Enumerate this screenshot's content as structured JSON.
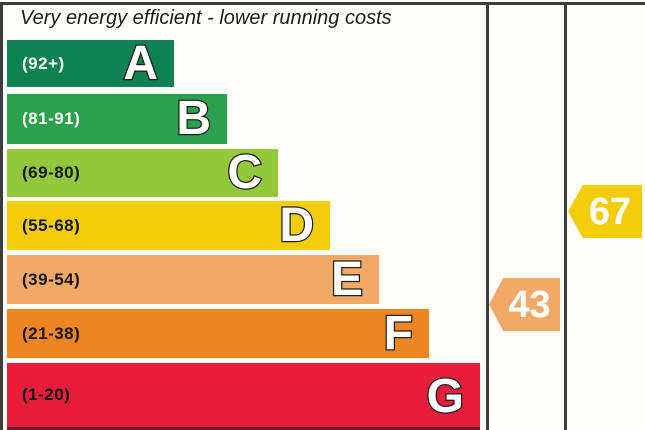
{
  "title": "Very energy efficient - lower running costs",
  "chart_data": {
    "type": "bar",
    "title": "Very energy efficient - lower running costs",
    "legend_position": "none",
    "grid": false,
    "bands": [
      {
        "letter": "A",
        "range": "(92+)",
        "score_range": [
          92,
          100
        ],
        "color": "#0e8250",
        "label_color": "#ffffff"
      },
      {
        "letter": "B",
        "range": "(81-91)",
        "score_range": [
          81,
          91
        ],
        "color": "#2ca04e",
        "label_color": "#ffffff"
      },
      {
        "letter": "C",
        "range": "(69-80)",
        "score_range": [
          69,
          80
        ],
        "color": "#93c83d",
        "label_color": "#161616"
      },
      {
        "letter": "D",
        "range": "(55-68)",
        "score_range": [
          55,
          68
        ],
        "color": "#f3cd0c",
        "label_color": "#161616"
      },
      {
        "letter": "E",
        "range": "(39-54)",
        "score_range": [
          39,
          54
        ],
        "color": "#f2a866",
        "label_color": "#161616"
      },
      {
        "letter": "F",
        "range": "(21-38)",
        "score_range": [
          21,
          38
        ],
        "color": "#ed8522",
        "label_color": "#161616"
      },
      {
        "letter": "G",
        "range": "(1-20)",
        "score_range": [
          1,
          20
        ],
        "color": "#e71d3b",
        "label_color": "#161616"
      }
    ],
    "bar_relative_widths": [
      167,
      220,
      271,
      323,
      372,
      422,
      473
    ],
    "ratings": {
      "current": {
        "value": "43",
        "band": "E",
        "color": "#f2a866"
      },
      "potential": {
        "value": "67",
        "band": "D",
        "color": "#f3cd0c"
      }
    }
  },
  "colors": {
    "frame": "#3c3c3c",
    "background": "#fdfdfb"
  }
}
